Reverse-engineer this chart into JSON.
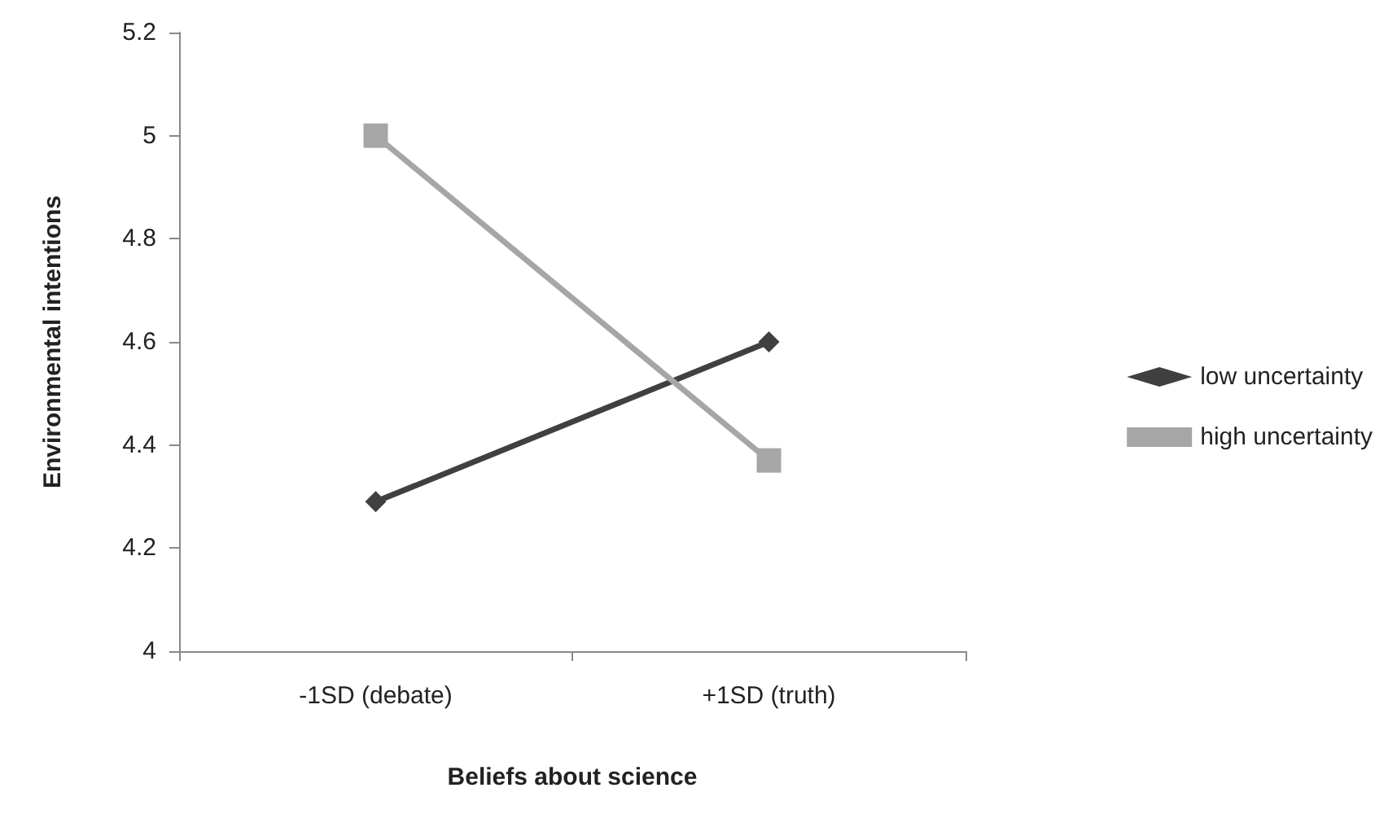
{
  "chart_data": {
    "type": "line",
    "xlabel": "Beliefs about science",
    "ylabel": "Environmental intentions",
    "categories": [
      "-1SD (debate)",
      "+1SD (truth)"
    ],
    "series": [
      {
        "name": "low uncertainty",
        "color": "#404040",
        "values": [
          4.29,
          4.6
        ],
        "marker": "diamond"
      },
      {
        "name": "high uncertainty",
        "color": "#a6a6a6",
        "values": [
          5.0,
          4.37
        ],
        "marker": "square"
      }
    ],
    "ylim": [
      4,
      5.2
    ],
    "yticks": [
      4,
      4.2,
      4.4,
      4.6,
      4.8,
      5,
      5.2
    ],
    "grid": false,
    "legend": "right"
  }
}
